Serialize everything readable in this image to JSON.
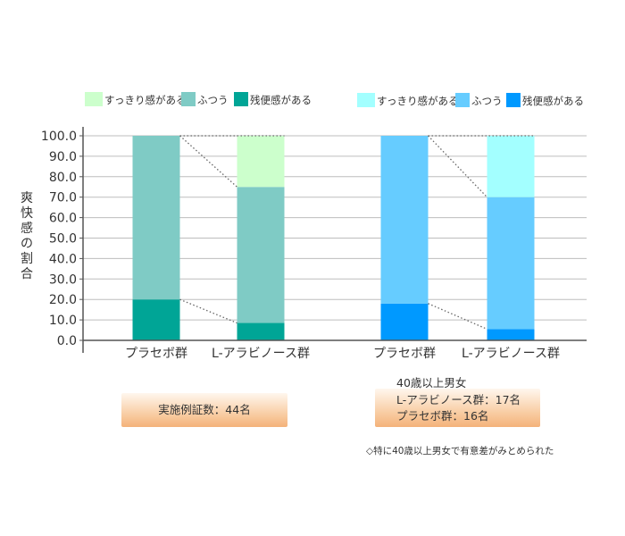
{
  "chart_data": {
    "type": "bar",
    "stacked": true,
    "ylabel": "爽快感の割合",
    "ylim": [
      0,
      100
    ],
    "yticks": [
      "0.0",
      "10.0",
      "20.0",
      "30.0",
      "40.0",
      "50.0",
      "60.0",
      "70.0",
      "80.0",
      "90.0",
      "100.0"
    ],
    "grid": true,
    "panels": [
      {
        "categories": [
          "プラセボ群",
          "L-アラビノース群"
        ],
        "series": [
          {
            "name": "残便感がある",
            "values": [
              20,
              8.5
            ],
            "color": "#00A596"
          },
          {
            "name": "ふつう",
            "values": [
              80,
              66.5
            ],
            "color": "#7FCBC5"
          },
          {
            "name": "すっきり感がある",
            "values": [
              0,
              25
            ],
            "color": "#CCFFCC"
          }
        ]
      },
      {
        "categories": [
          "プラセボ群",
          "L-アラビノース群"
        ],
        "series": [
          {
            "name": "残便感がある",
            "values": [
              18,
              5.5
            ],
            "color": "#0099FF"
          },
          {
            "name": "ふつう",
            "values": [
              82,
              64.5
            ],
            "color": "#66CCFF"
          },
          {
            "name": "すっきり感がある",
            "values": [
              0,
              30
            ],
            "color": "#A3FFFF"
          }
        ]
      }
    ]
  },
  "notes": {
    "left": [
      "実施例証数：44名"
    ],
    "right": [
      "40歳以上男女",
      "L-アラビノース群：17名",
      "プラセボ群：16名"
    ],
    "footnote": "◇特に40歳以上男女で有意差がみとめられた"
  }
}
